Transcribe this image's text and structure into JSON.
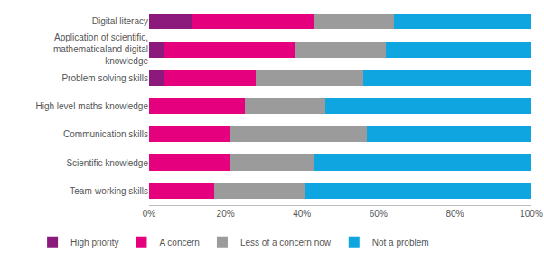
{
  "chart_data": {
    "type": "bar",
    "orientation": "horizontal",
    "stacked": true,
    "grid": false,
    "legend": "bottom",
    "categories": [
      "Digital literacy",
      "Application of scientific, mathematicaland digital knowledge",
      "Problem solving skills",
      "High level maths knowledge",
      "Communication skills",
      "Scientific knowledge",
      "Team-working skills"
    ],
    "series": [
      {
        "name": "High priority",
        "color": "#8b1a7c",
        "values": [
          11,
          4,
          4,
          0,
          0,
          0,
          0
        ]
      },
      {
        "name": "A concern",
        "color": "#e5007e",
        "values": [
          32,
          34,
          24,
          25,
          21,
          21,
          17
        ]
      },
      {
        "name": "Less of a concern now",
        "color": "#9b9b9b",
        "values": [
          21,
          24,
          28,
          21,
          36,
          22,
          24
        ]
      },
      {
        "name": "Not a problem",
        "color": "#0ea5e0",
        "values": [
          36,
          38,
          44,
          54,
          43,
          57,
          59
        ]
      }
    ],
    "xlim": [
      0,
      100
    ],
    "xticks": [
      {
        "value": 0,
        "label": "0%"
      },
      {
        "value": 20,
        "label": "20%"
      },
      {
        "value": 40,
        "label": "40%"
      },
      {
        "value": 60,
        "label": "60%"
      },
      {
        "value": 80,
        "label": "80%"
      },
      {
        "value": 100,
        "label": "100%"
      }
    ]
  }
}
